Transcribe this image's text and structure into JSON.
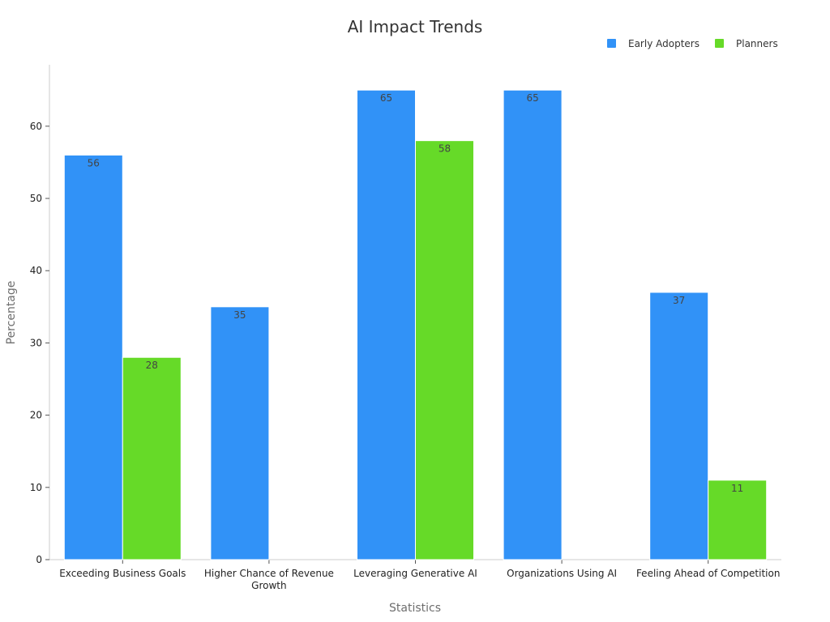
{
  "chart_data": {
    "type": "bar",
    "title": "AI Impact Trends",
    "xlabel": "Statistics",
    "ylabel": "Percentage",
    "categories": [
      [
        "Exceeding Business Goals"
      ],
      [
        "Higher Chance of Revenue",
        "Growth"
      ],
      [
        "Leveraging Generative AI"
      ],
      [
        "Organizations Using AI"
      ],
      [
        "Feeling Ahead of Competition"
      ]
    ],
    "series": [
      {
        "name": "Early Adopters",
        "color": "#3192f7",
        "values": [
          56,
          35,
          65,
          65,
          37
        ]
      },
      {
        "name": "Planners",
        "color": "#66da28",
        "values": [
          28,
          null,
          58,
          null,
          11
        ]
      }
    ],
    "ylim": [
      0,
      68.5
    ],
    "yticks": [
      0,
      10,
      20,
      30,
      40,
      50,
      60
    ],
    "legend_position": "top-right",
    "grid": false
  }
}
